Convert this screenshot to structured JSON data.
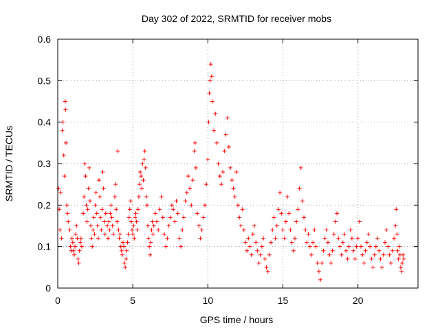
{
  "chart_data": {
    "type": "scatter",
    "title": "Day 302 of 2022, SRMTID for receiver mobs",
    "xlabel": "GPS time / hours",
    "ylabel": "SRMTID / TECUs",
    "xlim": [
      0,
      24
    ],
    "ylim": [
      0,
      0.6
    ],
    "x_ticks": [
      0,
      5,
      10,
      15,
      20
    ],
    "x_tick_labels": [
      "0",
      "5",
      "10",
      "15",
      "20"
    ],
    "y_ticks": [
      0,
      0.1,
      0.2,
      0.3,
      0.4,
      0.5,
      0.6
    ],
    "y_tick_labels": [
      "0",
      "0.1",
      "0.2",
      "0.3",
      "0.4",
      "0.5",
      "0.6"
    ],
    "grid": true,
    "marker": "+",
    "series": [
      {
        "name": "SRMTID",
        "color": "#ff0000",
        "points": [
          [
            0.05,
            0.24
          ],
          [
            0.1,
            0.19
          ],
          [
            0.15,
            0.14
          ],
          [
            0.2,
            0.23
          ],
          [
            0.25,
            0.12
          ],
          [
            0.3,
            0.38
          ],
          [
            0.35,
            0.4
          ],
          [
            0.4,
            0.32
          ],
          [
            0.45,
            0.27
          ],
          [
            0.5,
            0.45
          ],
          [
            0.52,
            0.43
          ],
          [
            0.55,
            0.35
          ],
          [
            0.6,
            0.2
          ],
          [
            0.65,
            0.18
          ],
          [
            0.7,
            0.16
          ],
          [
            0.8,
            0.14
          ],
          [
            0.85,
            0.1
          ],
          [
            0.9,
            0.09
          ],
          [
            0.95,
            0.12
          ],
          [
            1.0,
            0.11
          ],
          [
            1.05,
            0.09
          ],
          [
            1.1,
            0.08
          ],
          [
            1.15,
            0.1
          ],
          [
            1.2,
            0.13
          ],
          [
            1.25,
            0.15
          ],
          [
            1.3,
            0.12
          ],
          [
            1.35,
            0.07
          ],
          [
            1.4,
            0.06
          ],
          [
            1.45,
            0.09
          ],
          [
            1.5,
            0.11
          ],
          [
            1.55,
            0.12
          ],
          [
            1.6,
            0.1
          ],
          [
            1.7,
            0.18
          ],
          [
            1.75,
            0.22
          ],
          [
            1.8,
            0.3
          ],
          [
            1.85,
            0.27
          ],
          [
            1.9,
            0.2
          ],
          [
            1.95,
            0.16
          ],
          [
            2.0,
            0.19
          ],
          [
            2.05,
            0.24
          ],
          [
            2.1,
            0.29
          ],
          [
            2.15,
            0.21
          ],
          [
            2.2,
            0.15
          ],
          [
            2.25,
            0.12
          ],
          [
            2.3,
            0.1
          ],
          [
            2.35,
            0.14
          ],
          [
            2.4,
            0.17
          ],
          [
            2.45,
            0.13
          ],
          [
            2.5,
            0.2
          ],
          [
            2.55,
            0.23
          ],
          [
            2.6,
            0.18
          ],
          [
            2.65,
            0.15
          ],
          [
            2.7,
            0.12
          ],
          [
            2.75,
            0.26
          ],
          [
            2.8,
            0.22
          ],
          [
            2.85,
            0.17
          ],
          [
            2.9,
            0.14
          ],
          [
            2.95,
            0.19
          ],
          [
            3.0,
            0.28
          ],
          [
            3.05,
            0.24
          ],
          [
            3.1,
            0.16
          ],
          [
            3.15,
            0.13
          ],
          [
            3.2,
            0.18
          ],
          [
            3.3,
            0.15
          ],
          [
            3.35,
            0.12
          ],
          [
            3.4,
            0.16
          ],
          [
            3.45,
            0.14
          ],
          [
            3.5,
            0.18
          ],
          [
            3.55,
            0.2
          ],
          [
            3.6,
            0.17
          ],
          [
            3.65,
            0.15
          ],
          [
            3.7,
            0.13
          ],
          [
            3.8,
            0.22
          ],
          [
            3.85,
            0.25
          ],
          [
            3.9,
            0.19
          ],
          [
            3.95,
            0.16
          ],
          [
            4.0,
            0.33
          ],
          [
            4.05,
            0.14
          ],
          [
            4.1,
            0.12
          ],
          [
            4.15,
            0.13
          ],
          [
            4.2,
            0.1
          ],
          [
            4.25,
            0.09
          ],
          [
            4.3,
            0.08
          ],
          [
            4.35,
            0.11
          ],
          [
            4.4,
            0.1
          ],
          [
            4.45,
            0.06
          ],
          [
            4.5,
            0.05
          ],
          [
            4.55,
            0.07
          ],
          [
            4.6,
            0.09
          ],
          [
            4.65,
            0.11
          ],
          [
            4.7,
            0.13
          ],
          [
            4.75,
            0.17
          ],
          [
            4.8,
            0.19
          ],
          [
            4.85,
            0.21
          ],
          [
            4.9,
            0.16
          ],
          [
            4.95,
            0.14
          ],
          [
            5.0,
            0.13
          ],
          [
            5.05,
            0.15
          ],
          [
            5.1,
            0.12
          ],
          [
            5.15,
            0.17
          ],
          [
            5.2,
            0.18
          ],
          [
            5.25,
            0.16
          ],
          [
            5.3,
            0.14
          ],
          [
            5.35,
            0.19
          ],
          [
            5.4,
            0.22
          ],
          [
            5.45,
            0.25
          ],
          [
            5.5,
            0.28
          ],
          [
            5.55,
            0.27
          ],
          [
            5.6,
            0.24
          ],
          [
            5.65,
            0.3
          ],
          [
            5.7,
            0.26
          ],
          [
            5.75,
            0.31
          ],
          [
            5.8,
            0.33
          ],
          [
            5.85,
            0.29
          ],
          [
            5.9,
            0.22
          ],
          [
            5.95,
            0.2
          ],
          [
            6.0,
            0.15
          ],
          [
            6.05,
            0.12
          ],
          [
            6.1,
            0.1
          ],
          [
            6.15,
            0.08
          ],
          [
            6.2,
            0.11
          ],
          [
            6.25,
            0.14
          ],
          [
            6.3,
            0.16
          ],
          [
            6.35,
            0.13
          ],
          [
            6.4,
            0.15
          ],
          [
            6.5,
            0.18
          ],
          [
            6.6,
            0.16
          ],
          [
            6.7,
            0.14
          ],
          [
            6.8,
            0.19
          ],
          [
            6.9,
            0.22
          ],
          [
            7.0,
            0.17
          ],
          [
            7.1,
            0.13
          ],
          [
            7.2,
            0.1
          ],
          [
            7.3,
            0.12
          ],
          [
            7.4,
            0.15
          ],
          [
            7.5,
            0.17
          ],
          [
            7.6,
            0.2
          ],
          [
            7.7,
            0.19
          ],
          [
            7.8,
            0.16
          ],
          [
            7.9,
            0.21
          ],
          [
            8.0,
            0.18
          ],
          [
            8.1,
            0.12
          ],
          [
            8.2,
            0.1
          ],
          [
            8.3,
            0.14
          ],
          [
            8.4,
            0.17
          ],
          [
            8.5,
            0.21
          ],
          [
            8.6,
            0.23
          ],
          [
            8.7,
            0.27
          ],
          [
            8.8,
            0.24
          ],
          [
            8.9,
            0.2
          ],
          [
            9.0,
            0.26
          ],
          [
            9.1,
            0.33
          ],
          [
            9.15,
            0.35
          ],
          [
            9.2,
            0.29
          ],
          [
            9.3,
            0.18
          ],
          [
            9.4,
            0.15
          ],
          [
            9.5,
            0.12
          ],
          [
            9.6,
            0.14
          ],
          [
            9.7,
            0.17
          ],
          [
            9.8,
            0.2
          ],
          [
            9.9,
            0.25
          ],
          [
            10.0,
            0.31
          ],
          [
            10.05,
            0.4
          ],
          [
            10.1,
            0.47
          ],
          [
            10.15,
            0.5
          ],
          [
            10.2,
            0.54
          ],
          [
            10.25,
            0.51
          ],
          [
            10.3,
            0.45
          ],
          [
            10.4,
            0.38
          ],
          [
            10.5,
            0.42
          ],
          [
            10.6,
            0.35
          ],
          [
            10.7,
            0.3
          ],
          [
            10.8,
            0.27
          ],
          [
            10.9,
            0.25
          ],
          [
            11.0,
            0.28
          ],
          [
            11.1,
            0.33
          ],
          [
            11.2,
            0.37
          ],
          [
            11.3,
            0.41
          ],
          [
            11.4,
            0.34
          ],
          [
            11.5,
            0.29
          ],
          [
            11.6,
            0.26
          ],
          [
            11.7,
            0.24
          ],
          [
            11.8,
            0.22
          ],
          [
            11.9,
            0.28
          ],
          [
            12.0,
            0.2
          ],
          [
            12.1,
            0.17
          ],
          [
            12.2,
            0.15
          ],
          [
            12.3,
            0.19
          ],
          [
            12.4,
            0.14
          ],
          [
            12.5,
            0.11
          ],
          [
            12.6,
            0.09
          ],
          [
            12.7,
            0.12
          ],
          [
            12.8,
            0.1
          ],
          [
            12.9,
            0.08
          ],
          [
            13.0,
            0.13
          ],
          [
            13.1,
            0.15
          ],
          [
            13.2,
            0.11
          ],
          [
            13.3,
            0.09
          ],
          [
            13.4,
            0.06
          ],
          [
            13.5,
            0.08
          ],
          [
            13.6,
            0.1
          ],
          [
            13.7,
            0.12
          ],
          [
            13.8,
            0.07
          ],
          [
            13.9,
            0.05
          ],
          [
            14.0,
            0.04
          ],
          [
            14.1,
            0.08
          ],
          [
            14.2,
            0.11
          ],
          [
            14.3,
            0.14
          ],
          [
            14.4,
            0.17
          ],
          [
            14.5,
            0.12
          ],
          [
            14.6,
            0.15
          ],
          [
            14.7,
            0.19
          ],
          [
            14.8,
            0.23
          ],
          [
            14.9,
            0.18
          ],
          [
            15.0,
            0.14
          ],
          [
            15.1,
            0.12
          ],
          [
            15.2,
            0.16
          ],
          [
            15.3,
            0.22
          ],
          [
            15.4,
            0.18
          ],
          [
            15.5,
            0.14
          ],
          [
            15.6,
            0.11
          ],
          [
            15.7,
            0.09
          ],
          [
            15.8,
            0.12
          ],
          [
            15.9,
            0.16
          ],
          [
            16.0,
            0.19
          ],
          [
            16.1,
            0.24
          ],
          [
            16.2,
            0.29
          ],
          [
            16.3,
            0.21
          ],
          [
            16.4,
            0.17
          ],
          [
            16.5,
            0.14
          ],
          [
            16.6,
            0.11
          ],
          [
            16.7,
            0.13
          ],
          [
            16.8,
            0.1
          ],
          [
            16.9,
            0.08
          ],
          [
            17.0,
            0.11
          ],
          [
            17.1,
            0.14
          ],
          [
            17.2,
            0.1
          ],
          [
            17.3,
            0.06
          ],
          [
            17.4,
            0.04
          ],
          [
            17.5,
            0.02
          ],
          [
            17.6,
            0.06
          ],
          [
            17.7,
            0.09
          ],
          [
            17.8,
            0.12
          ],
          [
            17.9,
            0.14
          ],
          [
            18.0,
            0.11
          ],
          [
            18.1,
            0.08
          ],
          [
            18.2,
            0.06
          ],
          [
            18.3,
            0.09
          ],
          [
            18.4,
            0.13
          ],
          [
            18.5,
            0.16
          ],
          [
            18.6,
            0.18
          ],
          [
            18.7,
            0.12
          ],
          [
            18.8,
            0.1
          ],
          [
            18.9,
            0.08
          ],
          [
            19.0,
            0.11
          ],
          [
            19.1,
            0.13
          ],
          [
            19.2,
            0.09
          ],
          [
            19.3,
            0.07
          ],
          [
            19.4,
            0.1
          ],
          [
            19.5,
            0.14
          ],
          [
            19.6,
            0.12
          ],
          [
            19.7,
            0.09
          ],
          [
            19.8,
            0.07
          ],
          [
            19.9,
            0.1
          ],
          [
            20.0,
            0.12
          ],
          [
            20.1,
            0.16
          ],
          [
            20.2,
            0.1
          ],
          [
            20.3,
            0.08
          ],
          [
            20.4,
            0.06
          ],
          [
            20.5,
            0.09
          ],
          [
            20.6,
            0.11
          ],
          [
            20.7,
            0.13
          ],
          [
            20.8,
            0.1
          ],
          [
            20.9,
            0.07
          ],
          [
            21.0,
            0.05
          ],
          [
            21.1,
            0.08
          ],
          [
            21.2,
            0.1
          ],
          [
            21.3,
            0.12
          ],
          [
            21.4,
            0.09
          ],
          [
            21.5,
            0.07
          ],
          [
            21.6,
            0.05
          ],
          [
            21.7,
            0.08
          ],
          [
            21.8,
            0.11
          ],
          [
            21.9,
            0.14
          ],
          [
            22.0,
            0.1
          ],
          [
            22.1,
            0.08
          ],
          [
            22.2,
            0.06
          ],
          [
            22.3,
            0.09
          ],
          [
            22.4,
            0.12
          ],
          [
            22.5,
            0.15
          ],
          [
            22.55,
            0.19
          ],
          [
            22.6,
            0.13
          ],
          [
            22.65,
            0.09
          ],
          [
            22.7,
            0.07
          ],
          [
            22.75,
            0.1
          ],
          [
            22.8,
            0.08
          ],
          [
            22.85,
            0.05
          ],
          [
            22.9,
            0.04
          ],
          [
            22.95,
            0.06
          ],
          [
            23.0,
            0.08
          ],
          [
            23.05,
            0.07
          ]
        ]
      }
    ]
  }
}
